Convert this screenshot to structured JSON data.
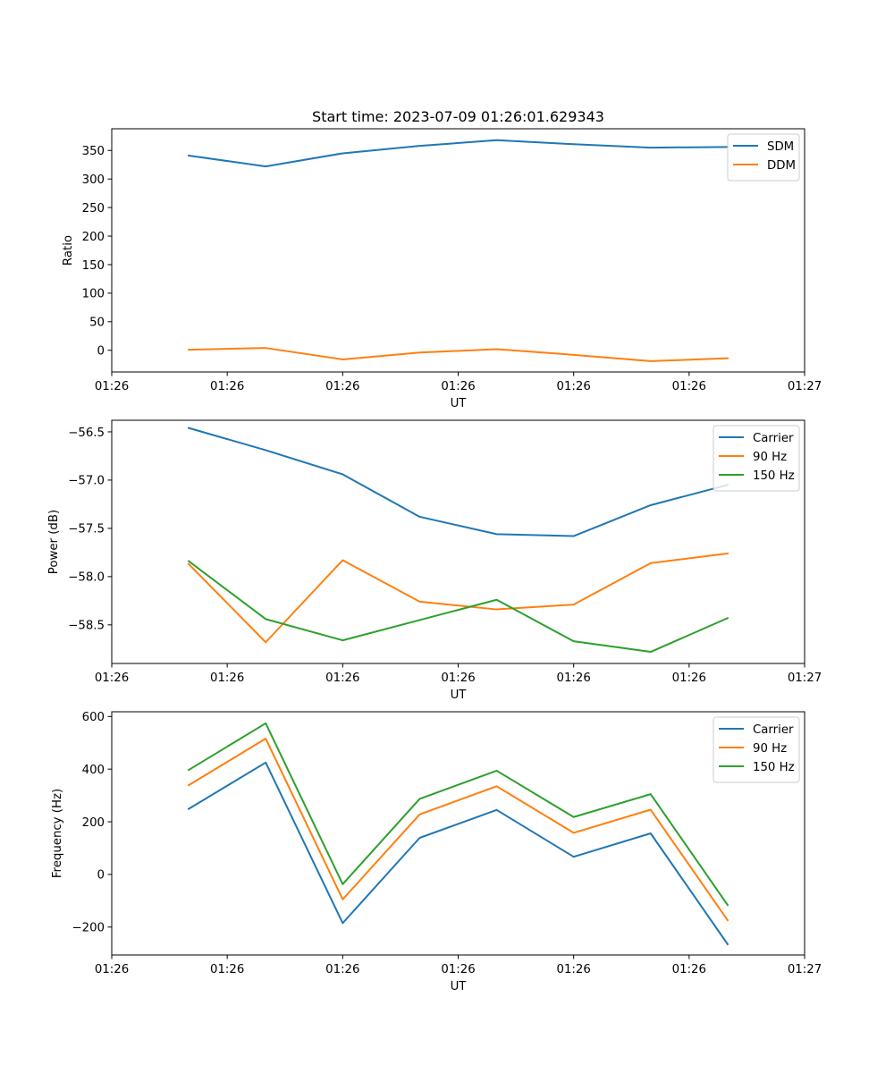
{
  "colors": {
    "blue": "#1f77b4",
    "orange": "#ff7f0e",
    "green": "#2ca02c"
  },
  "chart_data": [
    {
      "type": "line",
      "title": "Start time: 2023-07-09 01:26:01.629343",
      "xlabel": "UT",
      "ylabel": "Ratio",
      "x": [
        1,
        2,
        3,
        4,
        5,
        6,
        7,
        8
      ],
      "xlim": [
        0,
        9
      ],
      "xticks": [
        0,
        1.5,
        3,
        4.5,
        6,
        7.5,
        9
      ],
      "xtick_labels": [
        "01:26",
        "01:26",
        "01:26",
        "01:26",
        "01:26",
        "01:26",
        "01:27"
      ],
      "ylim": [
        -38,
        388
      ],
      "yticks": [
        0,
        50,
        100,
        150,
        200,
        250,
        300,
        350
      ],
      "ytick_labels": [
        "0",
        "50",
        "100",
        "150",
        "200",
        "250",
        "300",
        "350"
      ],
      "legend_position": "upper-right",
      "series": [
        {
          "name": "SDM",
          "color": "blue",
          "values": [
            341,
            322,
            345,
            358,
            368,
            361,
            355,
            356
          ]
        },
        {
          "name": "DDM",
          "color": "orange",
          "values": [
            1,
            4,
            -16,
            -4,
            2,
            -8,
            -19,
            -14
          ]
        }
      ]
    },
    {
      "type": "line",
      "title": "",
      "xlabel": "UT",
      "ylabel": "Power (dB)",
      "x": [
        1,
        2,
        3,
        4,
        5,
        6,
        7,
        8
      ],
      "xlim": [
        0,
        9
      ],
      "xticks": [
        0,
        1.5,
        3,
        4.5,
        6,
        7.5,
        9
      ],
      "xtick_labels": [
        "01:26",
        "01:26",
        "01:26",
        "01:26",
        "01:26",
        "01:26",
        "01:27"
      ],
      "ylim": [
        -58.9,
        -56.38
      ],
      "yticks": [
        -56.5,
        -57.0,
        -57.5,
        -58.0,
        -58.5
      ],
      "ytick_labels": [
        "−56.5",
        "−57.0",
        "−57.5",
        "−58.0",
        "−58.5"
      ],
      "legend_position": "upper-right",
      "series": [
        {
          "name": "Carrier",
          "color": "blue",
          "values": [
            -56.46,
            -56.69,
            -56.94,
            -57.38,
            -57.56,
            -57.58,
            -57.26,
            -57.05
          ]
        },
        {
          "name": "90 Hz",
          "color": "orange",
          "values": [
            -57.87,
            -58.68,
            -57.83,
            -58.26,
            -58.34,
            -58.29,
            -57.86,
            -57.76
          ]
        },
        {
          "name": "150 Hz",
          "color": "green",
          "values": [
            -57.84,
            -58.44,
            -58.66,
            -58.45,
            -58.24,
            -58.67,
            -58.78,
            -58.43
          ]
        }
      ]
    },
    {
      "type": "line",
      "title": "",
      "xlabel": "UT",
      "ylabel": "Frequency (Hz)",
      "x": [
        1,
        2,
        3,
        4,
        5,
        6,
        7,
        8
      ],
      "xlim": [
        0,
        9
      ],
      "xticks": [
        0,
        1.5,
        3,
        4.5,
        6,
        7.5,
        9
      ],
      "xtick_labels": [
        "01:26",
        "01:26",
        "01:26",
        "01:26",
        "01:26",
        "01:26",
        "01:27"
      ],
      "ylim": [
        -306,
        618
      ],
      "yticks": [
        -200,
        0,
        200,
        400,
        600
      ],
      "ytick_labels": [
        "−200",
        "0",
        "200",
        "400",
        "600"
      ],
      "legend_position": "upper-right",
      "series": [
        {
          "name": "Carrier",
          "color": "blue",
          "values": [
            249,
            425,
            -185,
            139,
            245,
            67,
            156,
            -265
          ]
        },
        {
          "name": "90 Hz",
          "color": "orange",
          "values": [
            339,
            516,
            -95,
            228,
            335,
            158,
            246,
            -174
          ]
        },
        {
          "name": "150 Hz",
          "color": "green",
          "values": [
            397,
            574,
            -37,
            287,
            394,
            218,
            305,
            -116
          ]
        }
      ]
    }
  ]
}
